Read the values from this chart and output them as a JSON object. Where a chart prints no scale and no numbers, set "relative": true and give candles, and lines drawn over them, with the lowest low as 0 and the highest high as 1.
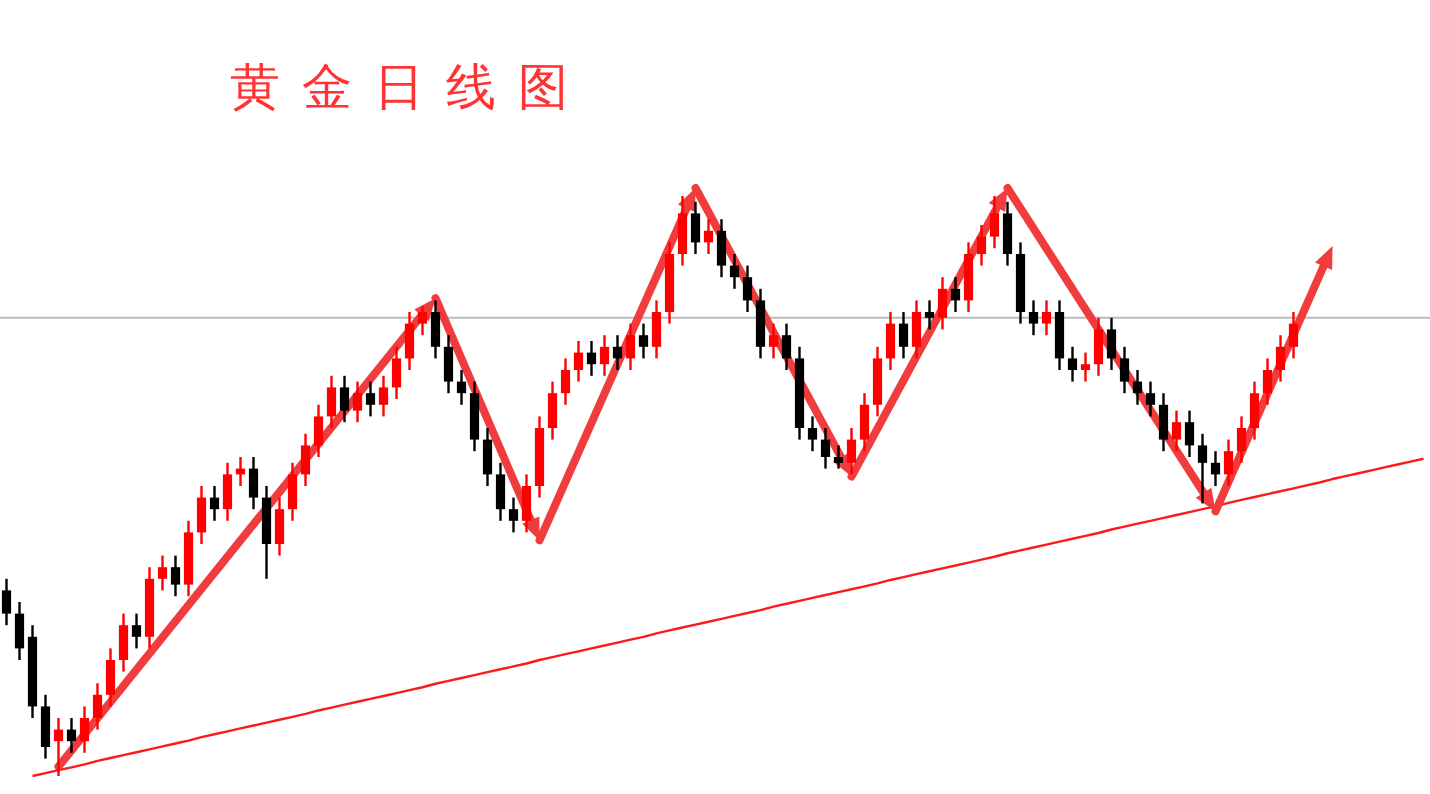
{
  "chart_data": {
    "type": "candlestick",
    "title": "黄金日线图",
    "relative": true,
    "categories": [
      null,
      null,
      null,
      null,
      null,
      null,
      null,
      null,
      null,
      null,
      null,
      null,
      null,
      null,
      null,
      null,
      null,
      null,
      null,
      null,
      null,
      null,
      null,
      null,
      null,
      null,
      null,
      null,
      null,
      null,
      null,
      null,
      null,
      null,
      null,
      null,
      null,
      null,
      null,
      null,
      null,
      null,
      null,
      null,
      null,
      null,
      null,
      null,
      null,
      null,
      null,
      null,
      null,
      null,
      null,
      null,
      null,
      null,
      null,
      null,
      null,
      null,
      null,
      null,
      null,
      null,
      null,
      null,
      null,
      null,
      null,
      null,
      null,
      null,
      null,
      null,
      null,
      null,
      null,
      null,
      null,
      null,
      null,
      null,
      null,
      null,
      null,
      null,
      null,
      null,
      null,
      null,
      null,
      null,
      null,
      null,
      null,
      null,
      null,
      null,
      null,
      null,
      null,
      null,
      null,
      null,
      null,
      null,
      null,
      null
    ],
    "ohlc": [
      [
        0.32,
        0.34,
        0.26,
        0.28
      ],
      [
        0.28,
        0.3,
        0.2,
        0.22
      ],
      [
        0.24,
        0.26,
        0.1,
        0.12
      ],
      [
        0.12,
        0.14,
        0.03,
        0.05
      ],
      [
        0.06,
        0.1,
        0.0,
        0.08
      ],
      [
        0.08,
        0.1,
        0.04,
        0.06
      ],
      [
        0.06,
        0.12,
        0.04,
        0.1
      ],
      [
        0.1,
        0.16,
        0.08,
        0.14
      ],
      [
        0.14,
        0.22,
        0.12,
        0.2
      ],
      [
        0.2,
        0.28,
        0.18,
        0.26
      ],
      [
        0.26,
        0.28,
        0.22,
        0.24
      ],
      [
        0.24,
        0.36,
        0.22,
        0.34
      ],
      [
        0.34,
        0.38,
        0.32,
        0.36
      ],
      [
        0.36,
        0.38,
        0.31,
        0.33
      ],
      [
        0.33,
        0.44,
        0.31,
        0.42
      ],
      [
        0.42,
        0.5,
        0.4,
        0.48
      ],
      [
        0.48,
        0.5,
        0.44,
        0.46
      ],
      [
        0.46,
        0.54,
        0.44,
        0.52
      ],
      [
        0.52,
        0.55,
        0.5,
        0.53
      ],
      [
        0.53,
        0.55,
        0.46,
        0.48
      ],
      [
        0.48,
        0.5,
        0.34,
        0.4
      ],
      [
        0.4,
        0.48,
        0.38,
        0.46
      ],
      [
        0.46,
        0.54,
        0.44,
        0.52
      ],
      [
        0.52,
        0.59,
        0.5,
        0.57
      ],
      [
        0.57,
        0.64,
        0.55,
        0.62
      ],
      [
        0.62,
        0.69,
        0.6,
        0.67
      ],
      [
        0.67,
        0.69,
        0.61,
        0.63
      ],
      [
        0.63,
        0.68,
        0.61,
        0.66
      ],
      [
        0.66,
        0.68,
        0.62,
        0.64
      ],
      [
        0.64,
        0.69,
        0.62,
        0.67
      ],
      [
        0.67,
        0.74,
        0.65,
        0.72
      ],
      [
        0.72,
        0.8,
        0.7,
        0.78
      ],
      [
        0.78,
        0.81,
        0.76,
        0.8
      ],
      [
        0.8,
        0.82,
        0.72,
        0.74
      ],
      [
        0.74,
        0.76,
        0.66,
        0.68
      ],
      [
        0.68,
        0.7,
        0.64,
        0.66
      ],
      [
        0.66,
        0.68,
        0.56,
        0.58
      ],
      [
        0.58,
        0.6,
        0.5,
        0.52
      ],
      [
        0.52,
        0.54,
        0.44,
        0.46
      ],
      [
        0.46,
        0.48,
        0.42,
        0.44
      ],
      [
        0.44,
        0.52,
        0.42,
        0.5
      ],
      [
        0.5,
        0.62,
        0.48,
        0.6
      ],
      [
        0.6,
        0.68,
        0.58,
        0.66
      ],
      [
        0.66,
        0.72,
        0.64,
        0.7
      ],
      [
        0.7,
        0.75,
        0.68,
        0.73
      ],
      [
        0.73,
        0.75,
        0.69,
        0.71
      ],
      [
        0.71,
        0.76,
        0.69,
        0.74
      ],
      [
        0.74,
        0.76,
        0.7,
        0.72
      ],
      [
        0.72,
        0.78,
        0.7,
        0.76
      ],
      [
        0.76,
        0.78,
        0.72,
        0.74
      ],
      [
        0.74,
        0.82,
        0.72,
        0.8
      ],
      [
        0.8,
        0.92,
        0.78,
        0.9
      ],
      [
        0.9,
        1.0,
        0.88,
        0.97
      ],
      [
        0.97,
        0.99,
        0.9,
        0.92
      ],
      [
        0.92,
        0.96,
        0.9,
        0.94
      ],
      [
        0.94,
        0.96,
        0.86,
        0.88
      ],
      [
        0.88,
        0.9,
        0.84,
        0.86
      ],
      [
        0.86,
        0.88,
        0.8,
        0.82
      ],
      [
        0.82,
        0.84,
        0.72,
        0.74
      ],
      [
        0.74,
        0.78,
        0.72,
        0.76
      ],
      [
        0.76,
        0.78,
        0.7,
        0.72
      ],
      [
        0.72,
        0.74,
        0.58,
        0.6
      ],
      [
        0.6,
        0.62,
        0.56,
        0.58
      ],
      [
        0.58,
        0.6,
        0.53,
        0.55
      ],
      [
        0.55,
        0.57,
        0.53,
        0.54
      ],
      [
        0.54,
        0.6,
        0.52,
        0.58
      ],
      [
        0.58,
        0.66,
        0.56,
        0.64
      ],
      [
        0.64,
        0.74,
        0.62,
        0.72
      ],
      [
        0.72,
        0.8,
        0.7,
        0.78
      ],
      [
        0.78,
        0.8,
        0.72,
        0.74
      ],
      [
        0.74,
        0.82,
        0.72,
        0.8
      ],
      [
        0.8,
        0.82,
        0.77,
        0.79
      ],
      [
        0.79,
        0.86,
        0.77,
        0.84
      ],
      [
        0.84,
        0.86,
        0.8,
        0.82
      ],
      [
        0.82,
        0.92,
        0.8,
        0.9
      ],
      [
        0.9,
        0.95,
        0.88,
        0.93
      ],
      [
        0.93,
        1.0,
        0.91,
        0.97
      ],
      [
        0.97,
        0.99,
        0.88,
        0.9
      ],
      [
        0.9,
        0.92,
        0.78,
        0.8
      ],
      [
        0.8,
        0.82,
        0.76,
        0.78
      ],
      [
        0.78,
        0.82,
        0.76,
        0.8
      ],
      [
        0.8,
        0.82,
        0.7,
        0.72
      ],
      [
        0.72,
        0.74,
        0.68,
        0.7
      ],
      [
        0.7,
        0.73,
        0.68,
        0.71
      ],
      [
        0.71,
        0.79,
        0.69,
        0.77
      ],
      [
        0.77,
        0.79,
        0.7,
        0.72
      ],
      [
        0.72,
        0.74,
        0.66,
        0.68
      ],
      [
        0.68,
        0.7,
        0.64,
        0.66
      ],
      [
        0.66,
        0.68,
        0.62,
        0.64
      ],
      [
        0.64,
        0.66,
        0.56,
        0.58
      ],
      [
        0.58,
        0.63,
        0.56,
        0.61
      ],
      [
        0.61,
        0.63,
        0.55,
        0.57
      ],
      [
        0.57,
        0.59,
        0.47,
        0.54
      ],
      [
        0.54,
        0.56,
        0.5,
        0.52
      ],
      [
        0.52,
        0.58,
        0.5,
        0.56
      ],
      [
        0.56,
        0.62,
        0.54,
        0.6
      ],
      [
        0.6,
        0.68,
        0.58,
        0.66
      ],
      [
        0.66,
        0.72,
        0.64,
        0.7
      ],
      [
        0.7,
        0.76,
        0.68,
        0.74
      ],
      [
        0.74,
        0.8,
        0.72,
        0.78
      ],
      null,
      null,
      null,
      null,
      null,
      null,
      null,
      null,
      null,
      null
    ],
    "series": [
      {
        "type": "line",
        "color": "#ff1a1a",
        "values": [
          null,
          null,
          0,
          0.005,
          0.01,
          0.015,
          0.02,
          0.026,
          0.031,
          0.036,
          0.041,
          0.046,
          0.051,
          0.056,
          0.061,
          0.067,
          0.072,
          0.077,
          0.082,
          0.087,
          0.092,
          0.097,
          0.102,
          0.107,
          0.113,
          0.118,
          0.123,
          0.128,
          0.133,
          0.138,
          0.143,
          0.148,
          0.153,
          0.159,
          0.164,
          0.169,
          0.174,
          0.179,
          0.184,
          0.189,
          0.194,
          0.2,
          0.205,
          0.21,
          0.215,
          0.22,
          0.225,
          0.23,
          0.235,
          0.24,
          0.246,
          0.251,
          0.256,
          0.261,
          0.266,
          0.271,
          0.276,
          0.281,
          0.286,
          0.292,
          0.297,
          0.302,
          0.307,
          0.312,
          0.317,
          0.322,
          0.327,
          0.332,
          0.338,
          0.343,
          0.348,
          0.353,
          0.358,
          0.363,
          0.368,
          0.373,
          0.378,
          0.384,
          0.389,
          0.394,
          0.399,
          0.404,
          0.409,
          0.414,
          0.419,
          0.425,
          0.43,
          0.435,
          0.44,
          0.445,
          0.45,
          0.455,
          0.46,
          0.465,
          0.471,
          0.476,
          0.481,
          0.486,
          0.491,
          0.496,
          0.501,
          0.506,
          0.512,
          0.517,
          0.522,
          0.527,
          0.532,
          0.537,
          0.542,
          0.547
        ]
      }
    ],
    "ref_lines": [
      {
        "axis": "y",
        "value": 0.79,
        "color": "#bbbbbb"
      }
    ]
  }
}
